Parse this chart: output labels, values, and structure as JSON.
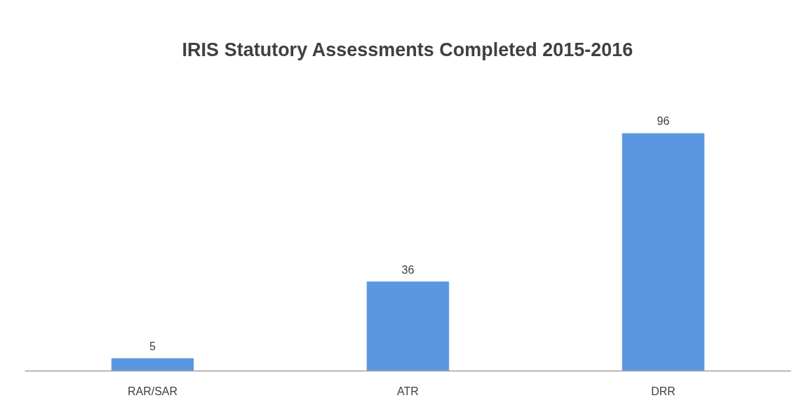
{
  "chart_data": {
    "type": "bar",
    "title": "IRIS Statutory Assessments Completed 2015-2016",
    "categories": [
      "RAR/SAR",
      "ATR",
      "DRR"
    ],
    "values": [
      5,
      36,
      96
    ],
    "color": "#5a97e0",
    "data_labels": true,
    "tick_labels": "x"
  }
}
